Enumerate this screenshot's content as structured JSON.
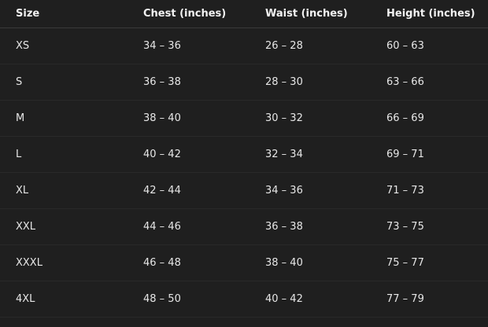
{
  "table": {
    "header": [
      "Size",
      "Chest (inches)",
      "Waist (inches)",
      "Height (inches)"
    ],
    "rows": [
      [
        "XS",
        "34 – 36",
        "26 – 28",
        "60 – 63"
      ],
      [
        "S",
        "36 – 38",
        "28 – 30",
        "63 – 66"
      ],
      [
        "M",
        "38 – 40",
        "30 – 32",
        "66 – 69"
      ],
      [
        "L",
        "40 – 42",
        "32 – 34",
        "69 – 71"
      ],
      [
        "XL",
        "42 – 44",
        "34 – 36",
        "71 – 73"
      ],
      [
        "XXL",
        "44 – 46",
        "36 – 38",
        "73 – 75"
      ],
      [
        "XXXL",
        "46 – 48",
        "38 – 40",
        "75 – 77"
      ],
      [
        "4XL",
        "48 – 50",
        "40 – 42",
        "77 – 79"
      ]
    ]
  }
}
